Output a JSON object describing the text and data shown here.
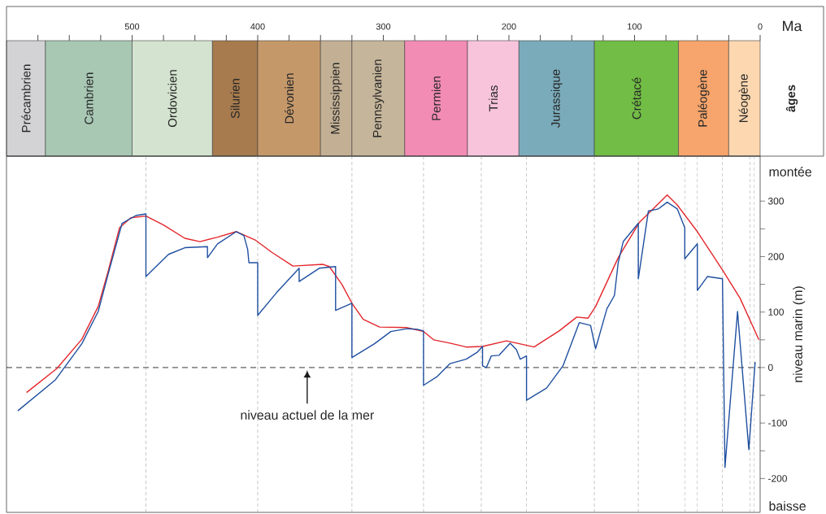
{
  "chart_data": [
    {
      "type": "bar",
      "orientation": "horizontal",
      "stacked": true,
      "categories": [
        null
      ],
      "xlim": [
        600,
        0
      ],
      "xlabel": "Ma",
      "ylabel": "âges",
      "xticks": [
        {
          "value": 575,
          "label": null
        },
        {
          "value": 550,
          "label": null
        },
        {
          "value": 525,
          "label": null
        },
        500,
        {
          "value": 475,
          "label": null
        },
        {
          "value": 450,
          "label": null
        },
        {
          "value": 425,
          "label": null
        },
        400,
        {
          "value": 375,
          "label": null
        },
        {
          "value": 350,
          "label": null
        },
        {
          "value": 325,
          "label": null
        },
        300,
        {
          "value": 275,
          "label": null
        },
        {
          "value": 250,
          "label": null
        },
        {
          "value": 225,
          "label": null
        },
        200,
        {
          "value": 175,
          "label": null
        },
        {
          "value": 150,
          "label": null
        },
        {
          "value": 125,
          "label": null
        },
        100,
        {
          "value": 75,
          "label": null
        },
        {
          "value": 50,
          "label": null
        },
        {
          "value": 25,
          "label": null
        },
        0
      ],
      "series": [
        {
          "name": "Néogène",
          "color": "#fcd7b0",
          "values": [
            25
          ]
        },
        {
          "name": "Paléogène",
          "color": "#f7a56c",
          "values": [
            40
          ]
        },
        {
          "name": "Crétacé",
          "color": "#71bd45",
          "values": [
            67
          ]
        },
        {
          "name": "Jurassique",
          "color": "#7aabbb",
          "values": [
            60
          ]
        },
        {
          "name": "Trias",
          "color": "#f8c4dc",
          "values": [
            41
          ]
        },
        {
          "name": "Permien",
          "color": "#f28cb5",
          "values": [
            50
          ]
        },
        {
          "name": "Pennsylvanien",
          "color": "#c5b59a",
          "values": [
            42
          ]
        },
        {
          "name": "Mississippien",
          "color": "#c3b094",
          "values": [
            25
          ]
        },
        {
          "name": "Dévonien",
          "color": "#c5986a",
          "values": [
            50
          ]
        },
        {
          "name": "Silurien",
          "color": "#a77b4e",
          "values": [
            36
          ]
        },
        {
          "name": "Ordovicien",
          "color": "#d3e3cf",
          "values": [
            64
          ]
        },
        {
          "name": "Cambrien",
          "color": "#a8c8b4",
          "values": [
            69
          ]
        },
        {
          "name": "Précambrien",
          "color": "#d3d3d5",
          "values": [
            31
          ]
        }
      ]
    },
    {
      "type": "line",
      "xlim": [
        600,
        0
      ],
      "ylim": [
        -261,
        381
      ],
      "ylabel": "niveau marin (m)",
      "tick_labels": "y",
      "line_style": "solid",
      "yticks": [
        -200,
        {
          "value": -150,
          "label": null
        },
        -100,
        {
          "value": -50,
          "label": null
        },
        0,
        {
          "value": 50,
          "label": null
        },
        100,
        {
          "value": 150,
          "label": null
        },
        200,
        {
          "value": 250,
          "label": null
        },
        300
      ],
      "series": [
        {
          "color": "#e3262b",
          "x": [
            584,
            560,
            540,
            527,
            519,
            510,
            501,
            489,
            475,
            458,
            446,
            432,
            417,
            402,
            389,
            372,
            348,
            343,
            333,
            325,
            316,
            303,
            281,
            268,
            260,
            247,
            234,
            221,
            202,
            180,
            160,
            146,
            137,
            131,
            113,
            96,
            74,
            66,
            50,
            30,
            16,
            1
          ],
          "values": [
            -45,
            -2,
            51,
            110,
            174,
            252,
            270,
            273,
            257,
            233,
            227,
            235,
            245,
            230,
            208,
            183,
            186,
            182,
            150,
            116,
            87,
            73,
            72,
            65,
            50,
            44,
            37,
            38,
            48,
            37,
            66,
            91,
            89,
            110,
            198,
            262,
            311,
            293,
            245,
            176,
            125,
            50
          ]
        },
        {
          "color": "#1f4fa0",
          "x": [
            591,
            561,
            540,
            527,
            519,
            508,
            497,
            489,
            489,
            471,
            458,
            440,
            440,
            432,
            417,
            411,
            408,
            407,
            400,
            400,
            385,
            367,
            367,
            351,
            338,
            338,
            325,
            325,
            307,
            294,
            281,
            273,
            268,
            268,
            257,
            247,
            234,
            225,
            221,
            221,
            218,
            214,
            208,
            199,
            194,
            191,
            186,
            186,
            170,
            157,
            144,
            135,
            131,
            122,
            116,
            113,
            109,
            97,
            97,
            89,
            81,
            74,
            66,
            60,
            60,
            50,
            50,
            42,
            30,
            28,
            18,
            9,
            4
          ],
          "values": [
            -78,
            -22,
            43,
            101,
            169,
            260,
            274,
            277,
            164,
            204,
            216,
            218,
            198,
            223,
            245,
            238,
            213,
            189,
            189,
            94,
            135,
            179,
            155,
            179,
            182,
            103,
            116,
            18,
            43,
            65,
            70,
            69,
            66,
            -32,
            -16,
            7,
            15,
            28,
            38,
            3,
            0,
            21,
            22,
            44,
            32,
            15,
            21,
            -59,
            -37,
            3,
            81,
            76,
            34,
            106,
            130,
            189,
            227,
            260,
            160,
            282,
            286,
            298,
            286,
            252,
            196,
            223,
            139,
            164,
            160,
            -180,
            101,
            -148,
            10
          ]
        }
      ],
      "ref_lines": [
        {
          "axis": "y",
          "value": 0,
          "color": "#231f20",
          "line_style": "dashed"
        },
        {
          "axis": "x",
          "value": 489,
          "color": "#8c8c8c",
          "line_style": "dashed"
        },
        {
          "axis": "x",
          "value": 400,
          "color": "#8c8c8c",
          "line_style": "dashed"
        },
        {
          "axis": "x",
          "value": 325,
          "color": "#8c8c8c",
          "line_style": "dashed"
        },
        {
          "axis": "x",
          "value": 268,
          "color": "#8c8c8c",
          "line_style": "dashed"
        },
        {
          "axis": "x",
          "value": 222,
          "color": "#8c8c8c",
          "line_style": "dashed"
        },
        {
          "axis": "x",
          "value": 186,
          "color": "#8c8c8c",
          "line_style": "dashed"
        },
        {
          "axis": "x",
          "value": 132,
          "color": "#8c8c8c",
          "line_style": "dashed"
        },
        {
          "axis": "x",
          "value": 97,
          "color": "#8c8c8c",
          "line_style": "dashed"
        },
        {
          "axis": "x",
          "value": 60,
          "color": "#8c8c8c",
          "line_style": "dashed"
        },
        {
          "axis": "x",
          "value": 50,
          "color": "#8c8c8c",
          "line_style": "dashed"
        },
        {
          "axis": "x",
          "value": 30,
          "color": "#8c8c8c",
          "line_style": "dashed"
        },
        {
          "axis": "x",
          "value": 8,
          "color": "#8c8c8c",
          "line_style": "dashed"
        },
        {
          "axis": "x",
          "value": 5,
          "color": "#8c8c8c",
          "line_style": "dashed"
        }
      ],
      "annotations": [
        "montée",
        "baisse",
        "niveau actuel de la mer"
      ]
    }
  ]
}
